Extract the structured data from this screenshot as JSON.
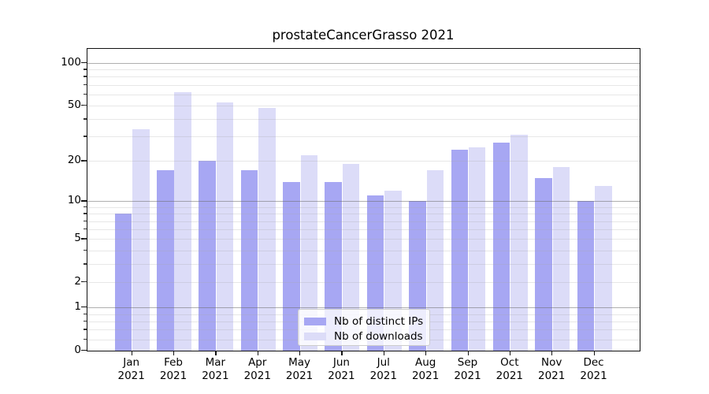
{
  "title": "prostateCancerGrasso 2021",
  "legend": {
    "items": [
      {
        "label": "Nb of distinct IPs",
        "color": "#a7a7f3"
      },
      {
        "label": "Nb of downloads",
        "color": "#dcdcf8"
      }
    ]
  },
  "colors": {
    "dark_bar": "#a7a7f3",
    "light_bar": "#dcdcf8",
    "major_grid": "#b0b0b0",
    "minor_grid": "#e8e8e8",
    "axis": "#111111",
    "legend_border": "#cccccc"
  },
  "chart_data": {
    "type": "bar",
    "title": "prostateCancerGrasso 2021",
    "categories": [
      "Jan 2021",
      "Feb 2021",
      "Mar 2021",
      "Apr 2021",
      "May 2021",
      "Jun 2021",
      "Jul 2021",
      "Aug 2021",
      "Sep 2021",
      "Oct 2021",
      "Nov 2021",
      "Dec 2021"
    ],
    "months": [
      "Jan",
      "Feb",
      "Mar",
      "Apr",
      "May",
      "Jun",
      "Jul",
      "Aug",
      "Sep",
      "Oct",
      "Nov",
      "Dec"
    ],
    "year": "2021",
    "series": [
      {
        "name": "Nb of distinct IPs",
        "color": "#a7a7f3",
        "values": [
          8,
          17,
          20,
          17,
          14,
          14,
          11,
          10,
          24,
          27,
          15,
          10
        ]
      },
      {
        "name": "Nb of downloads",
        "color": "#dcdcf8",
        "values": [
          34,
          62,
          53,
          48,
          22,
          19,
          12,
          17,
          25,
          31,
          18,
          13
        ]
      }
    ],
    "xlabel": "",
    "ylabel": "",
    "yscale": "log1p",
    "yticks": [
      100,
      50,
      20,
      10,
      5,
      2,
      1,
      0
    ],
    "ylim": [
      0,
      126
    ],
    "grid": true,
    "legend_position": "lower center"
  }
}
